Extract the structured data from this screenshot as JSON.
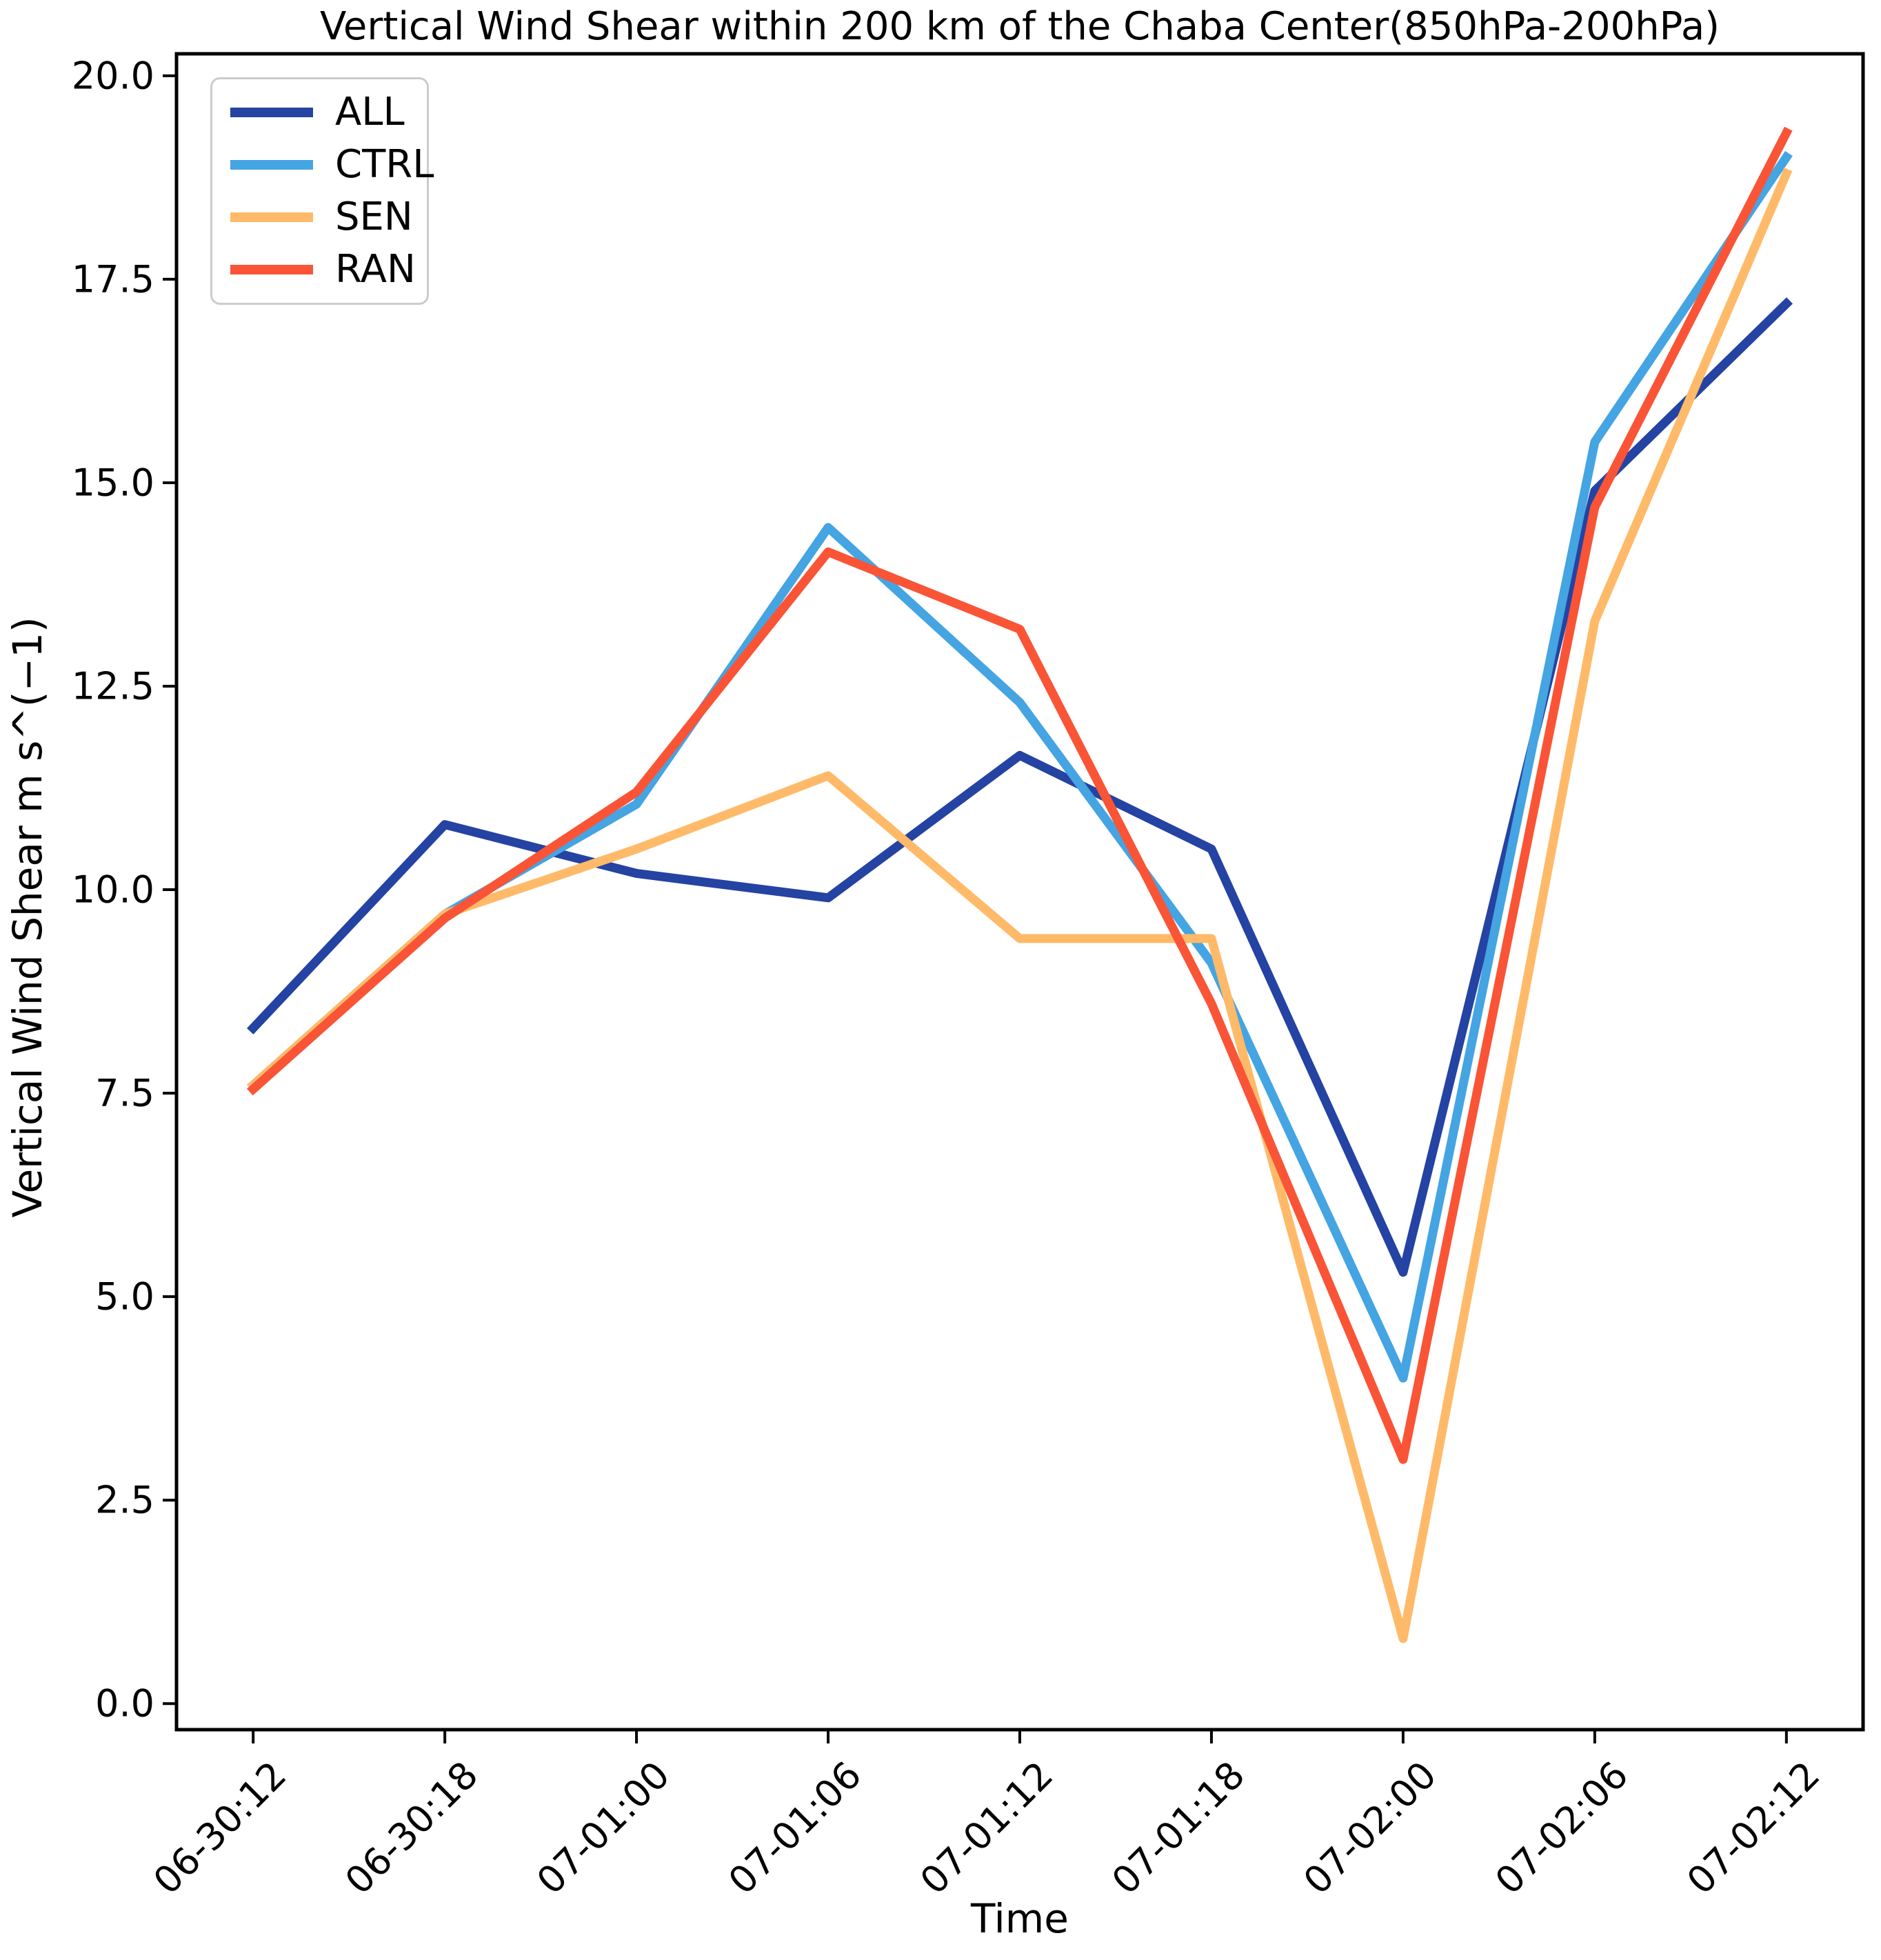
{
  "figure": {
    "title": "Vertical Wind Shear within 200 km of the Chaba Center(850hPa-200hPa)",
    "xlabel": "Time",
    "ylabel": "Vertical Wind Shear m s^(−1)"
  },
  "chart_data": {
    "type": "line",
    "title": "Vertical Wind Shear within 200 km of the Chaba Center(850hPa-200hPa)",
    "xlabel": "Time",
    "ylabel": "Vertical Wind Shear m s^(−1)",
    "categories": [
      "06-30:12",
      "06-30:18",
      "07-01:00",
      "07-01:06",
      "07-01:12",
      "07-01:18",
      "07-02:00",
      "07-02:06",
      "07-02:12"
    ],
    "series": [
      {
        "name": "ALL",
        "color": "#2443a2",
        "values": [
          8.3,
          10.8,
          10.2,
          9.9,
          11.65,
          10.5,
          5.3,
          14.9,
          17.2
        ]
      },
      {
        "name": "CTRL",
        "color": "#45a4e2",
        "values": [
          7.6,
          9.7,
          11.05,
          14.45,
          12.3,
          9.1,
          4.0,
          15.5,
          19.0
        ]
      },
      {
        "name": "SEN",
        "color": "#ffba69",
        "values": [
          7.6,
          9.7,
          10.5,
          11.4,
          9.4,
          9.4,
          0.8,
          13.3,
          18.8
        ]
      },
      {
        "name": "RAN",
        "color": "#fa5436",
        "values": [
          7.55,
          9.65,
          11.2,
          14.15,
          13.2,
          8.6,
          3.0,
          14.7,
          19.3
        ]
      }
    ],
    "y_ticks": [
      0.0,
      2.5,
      5.0,
      7.5,
      10.0,
      12.5,
      15.0,
      17.5,
      20.0
    ],
    "y_tick_decimals": 1,
    "ylim": [
      -0.32,
      20.27
    ],
    "x_margin": 0.4,
    "grid": false,
    "legend_position": "upper left",
    "line_width": 13,
    "axis_color": "#000000"
  }
}
